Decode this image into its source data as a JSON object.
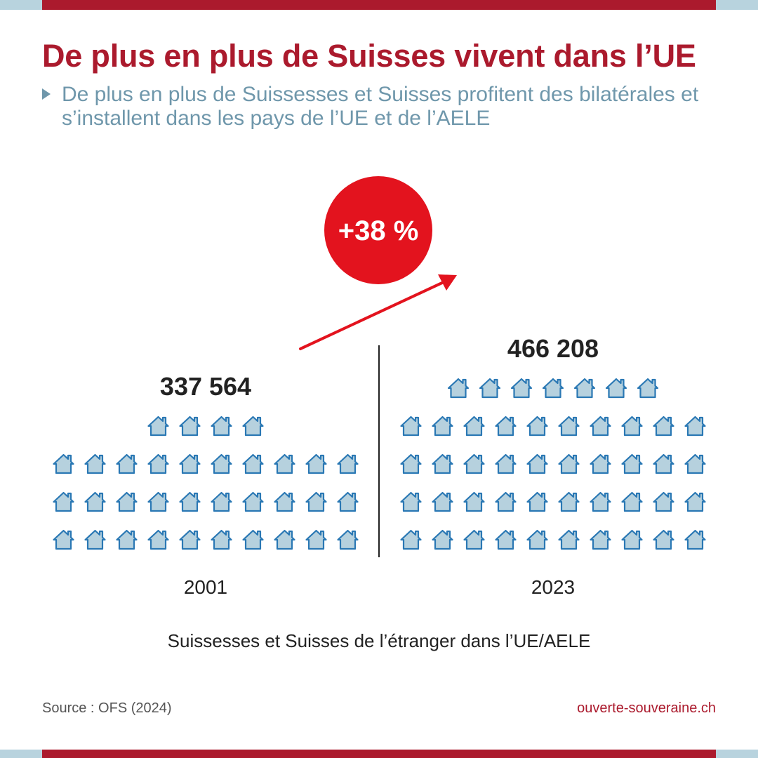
{
  "title": "De plus en plus de Suisses vivent dans l’UE",
  "subtitle": "De plus en plus de Suissesses et Suisses profitent des bilatérales et s’installent dans les pays de l’UE et de l’AELE",
  "colors": {
    "brand_red": "#ab1a2d",
    "badge_red": "#e3131e",
    "subtitle_blue": "#6f97ab",
    "icon_fill": "#b6d1de",
    "icon_stroke": "#2a78b4",
    "light_blue": "#b8d3de",
    "text_dark": "#222222",
    "text_gray": "#555555"
  },
  "icon": "house-icon",
  "chart_data": {
    "type": "pictogram",
    "categories": [
      "2001",
      "2023"
    ],
    "values": [
      337564,
      466208
    ],
    "value_labels": [
      "337 564",
      "466 208"
    ],
    "icon_counts": [
      34,
      47
    ],
    "change_label": "+38 %",
    "xlabel": "Suissesses et Suisses de l’étranger dans l’UE/AELE"
  },
  "footer": {
    "source": "Source : OFS (2024)",
    "website": "ouverte-souveraine.ch"
  }
}
